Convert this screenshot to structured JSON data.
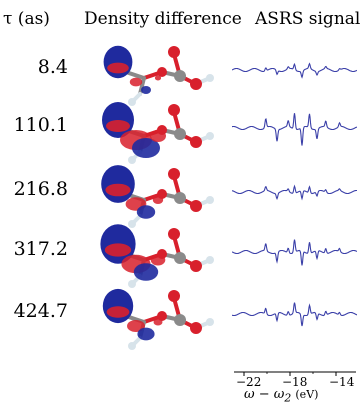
{
  "headers": {
    "tau": "τ (as)",
    "density": "Density difference",
    "signal": "ASRS signal"
  },
  "panels": [
    {
      "tau": "8.4"
    },
    {
      "tau": "110.1"
    },
    {
      "tau": "216.8"
    },
    {
      "tau": "317.2"
    },
    {
      "tau": "424.7"
    }
  ],
  "axis": {
    "ticks": [
      "−22",
      "−18",
      "−14"
    ],
    "xlabel": "ω − ω",
    "xlabel_sub": "2",
    "xlabel_unit": "(eV)"
  },
  "colors": {
    "positive_density": "#1f2a9e",
    "negative_density": "#d8202c",
    "signal_line": "#3a3fa8",
    "oxygen": "#d8202c",
    "carbon": "#8a8a8a",
    "hydrogen": "#d7e3ea"
  }
}
